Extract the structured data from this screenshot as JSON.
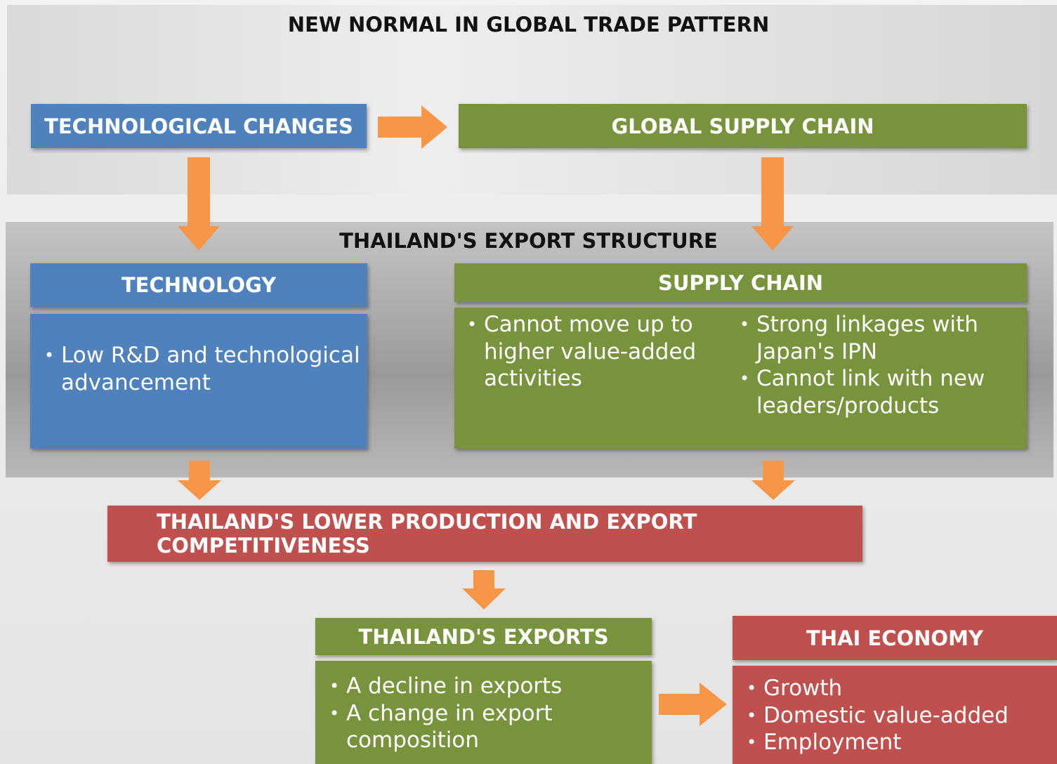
{
  "sections": [
    {
      "title": "NEW NORMAL IN GLOBAL TRADE PATTERN"
    },
    {
      "title": "THAILAND'S EXPORT STRUCTURE"
    }
  ],
  "nodes": [
    {
      "label": "TECHNOLOGICAL CHANGES"
    },
    {
      "label": "GLOBAL SUPPLY CHAIN"
    },
    {
      "label": "TECHNOLOGY",
      "bullets": [
        "Low R&D and technological advancement"
      ]
    },
    {
      "label": "SUPPLY CHAIN",
      "columns": [
        [
          "Cannot move up to higher value-added activities"
        ],
        [
          "Strong linkages with Japan's IPN",
          "Cannot link with new leaders/products"
        ]
      ]
    },
    {
      "label": "THAILAND'S LOWER PRODUCTION AND EXPORT COMPETITIVENESS"
    },
    {
      "label": "THAILAND'S EXPORTS",
      "bullets": [
        "A decline in exports",
        "A change in export composition"
      ]
    },
    {
      "label": "THAI ECONOMY",
      "bullets": [
        "Growth",
        "Domestic value-added",
        "Employment"
      ]
    }
  ]
}
